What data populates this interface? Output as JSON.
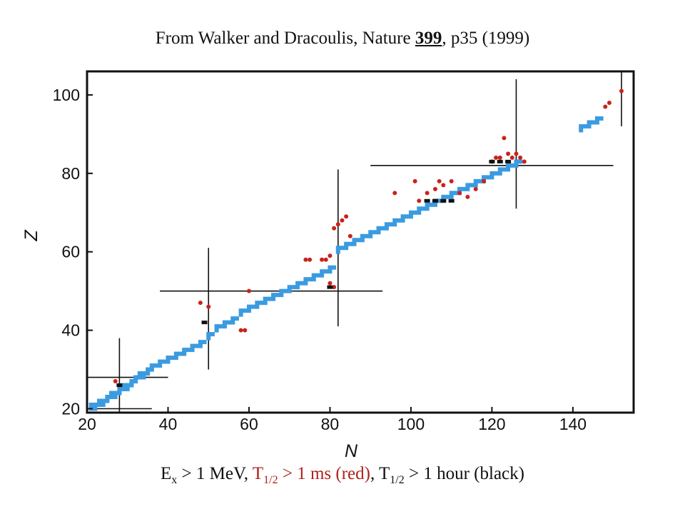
{
  "title": {
    "prefix": "From Walker and Dracoulis, Nature ",
    "volume": "399",
    "suffix": ", p35 (1999)"
  },
  "caption": {
    "ex_sym": "E",
    "ex_sub": "x",
    "part1": " > 1 MeV, ",
    "t_sym": "T",
    "t_sub": "1/2",
    "red_part": " > 1 ms (red)",
    "part2": ", ",
    "t2_sym": "T",
    "t2_sub": "1/2",
    "part3": " > 1 hour (black)"
  },
  "chart_data": {
    "type": "scatter",
    "title": "",
    "xlabel": "N",
    "ylabel": "Z",
    "xlim": [
      20,
      155
    ],
    "ylim": [
      19,
      106
    ],
    "xticks": [
      20,
      40,
      60,
      80,
      100,
      120,
      140
    ],
    "yticks": [
      20,
      40,
      60,
      80,
      100
    ],
    "grid": false,
    "colors": {
      "stable": "#3b9be0",
      "red": "#c8231b",
      "black": "#111111",
      "frame": "#111111"
    },
    "stable_ridge": [
      [
        21,
        20
      ],
      [
        22,
        20
      ],
      [
        23,
        21
      ],
      [
        24,
        21
      ],
      [
        25,
        22
      ],
      [
        26,
        23
      ],
      [
        27,
        23
      ],
      [
        28,
        24
      ],
      [
        29,
        25
      ],
      [
        30,
        25
      ],
      [
        31,
        26
      ],
      [
        32,
        27
      ],
      [
        33,
        28
      ],
      [
        34,
        28
      ],
      [
        35,
        29
      ],
      [
        36,
        30
      ],
      [
        38,
        31
      ],
      [
        40,
        32
      ],
      [
        42,
        33
      ],
      [
        44,
        34
      ],
      [
        46,
        35
      ],
      [
        48,
        36
      ],
      [
        50,
        38
      ],
      [
        52,
        40
      ],
      [
        54,
        41
      ],
      [
        56,
        42
      ],
      [
        58,
        44
      ],
      [
        60,
        45
      ],
      [
        62,
        46
      ],
      [
        64,
        47
      ],
      [
        66,
        48
      ],
      [
        68,
        49
      ],
      [
        70,
        50
      ],
      [
        72,
        51
      ],
      [
        74,
        52
      ],
      [
        76,
        53
      ],
      [
        78,
        54
      ],
      [
        80,
        55
      ],
      [
        82,
        60
      ],
      [
        84,
        61
      ],
      [
        86,
        62
      ],
      [
        88,
        63
      ],
      [
        90,
        64
      ],
      [
        92,
        65
      ],
      [
        94,
        66
      ],
      [
        96,
        67
      ],
      [
        98,
        68
      ],
      [
        100,
        69
      ],
      [
        102,
        70
      ],
      [
        104,
        71
      ],
      [
        106,
        72
      ],
      [
        108,
        73
      ],
      [
        110,
        74
      ],
      [
        112,
        75
      ],
      [
        114,
        76
      ],
      [
        116,
        77
      ],
      [
        118,
        78
      ],
      [
        120,
        79
      ],
      [
        122,
        80
      ],
      [
        124,
        81
      ],
      [
        126,
        82
      ],
      [
        142,
        91
      ],
      [
        144,
        92
      ],
      [
        146,
        93
      ]
    ],
    "red_points": [
      [
        27,
        27
      ],
      [
        28,
        26
      ],
      [
        48,
        47
      ],
      [
        50,
        46
      ],
      [
        58,
        40
      ],
      [
        59,
        40
      ],
      [
        60,
        50
      ],
      [
        74,
        58
      ],
      [
        78,
        58
      ],
      [
        79,
        58
      ],
      [
        80,
        59
      ],
      [
        80,
        52
      ],
      [
        81,
        66
      ],
      [
        82,
        67
      ],
      [
        83,
        68
      ],
      [
        84,
        69
      ],
      [
        85,
        64
      ],
      [
        102,
        73
      ],
      [
        104,
        75
      ],
      [
        106,
        76
      ],
      [
        108,
        77
      ],
      [
        110,
        78
      ],
      [
        112,
        75
      ],
      [
        114,
        74
      ],
      [
        116,
        76
      ],
      [
        118,
        78
      ],
      [
        120,
        83
      ],
      [
        121,
        84
      ],
      [
        122,
        84
      ],
      [
        124,
        85
      ],
      [
        125,
        84
      ],
      [
        126,
        85
      ],
      [
        127,
        84
      ],
      [
        128,
        83
      ],
      [
        148,
        97
      ],
      [
        149,
        98
      ],
      [
        152,
        101
      ],
      [
        123,
        89
      ],
      [
        96,
        75
      ],
      [
        101,
        78
      ],
      [
        107,
        78
      ],
      [
        75,
        58
      ],
      [
        81,
        51
      ]
    ],
    "black_points": [
      [
        28,
        26
      ],
      [
        49,
        42
      ],
      [
        80,
        51
      ],
      [
        104,
        73
      ],
      [
        106,
        73
      ],
      [
        108,
        73
      ],
      [
        110,
        73
      ],
      [
        120,
        83
      ],
      [
        122,
        83
      ],
      [
        124,
        83
      ]
    ],
    "magic_lines": [
      {
        "orient": "vertical",
        "at": 20,
        "from": 19,
        "to": 35
      },
      {
        "orient": "vertical",
        "at": 28,
        "from": 19,
        "to": 38
      },
      {
        "orient": "vertical",
        "at": 50,
        "from": 30,
        "to": 61
      },
      {
        "orient": "vertical",
        "at": 82,
        "from": 41,
        "to": 81
      },
      {
        "orient": "vertical",
        "at": 126,
        "from": 71,
        "to": 104
      },
      {
        "orient": "vertical",
        "at": 152,
        "from": 92,
        "to": 106
      },
      {
        "orient": "horizontal",
        "at": 20,
        "from": 20,
        "to": 36
      },
      {
        "orient": "horizontal",
        "at": 28,
        "from": 20,
        "to": 40
      },
      {
        "orient": "horizontal",
        "at": 50,
        "from": 38,
        "to": 93
      },
      {
        "orient": "horizontal",
        "at": 82,
        "from": 90,
        "to": 150
      }
    ]
  }
}
